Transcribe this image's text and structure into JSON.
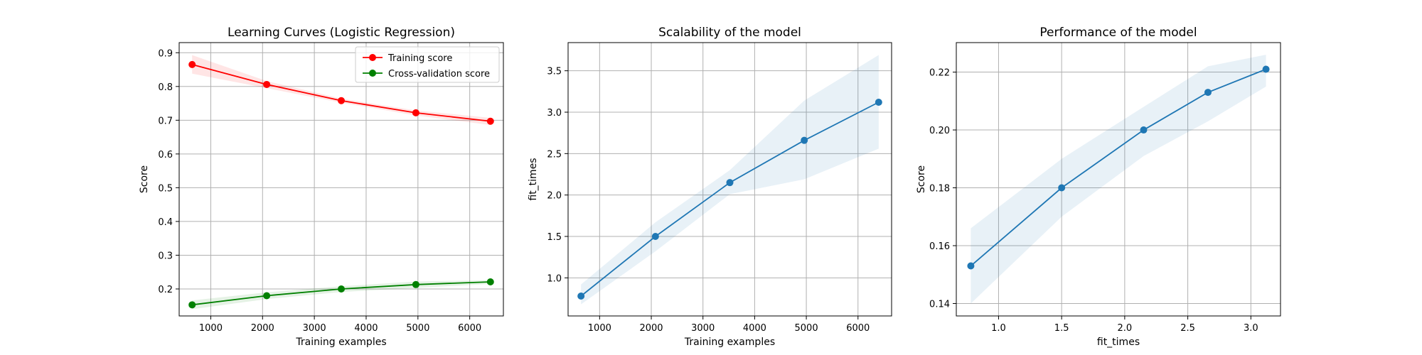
{
  "chart_data": [
    {
      "type": "line",
      "title": "Learning Curves (Logistic Regression)",
      "xlabel": "Training examples",
      "ylabel": "Score",
      "xlim": [
        390,
        6650
      ],
      "ylim": [
        0.12,
        0.93
      ],
      "xticks": [
        1000,
        2000,
        3000,
        4000,
        5000,
        6000
      ],
      "yticks": [
        0.2,
        0.3,
        0.4,
        0.5,
        0.6,
        0.7,
        0.8,
        0.9
      ],
      "grid": true,
      "legend": "top-right",
      "x": [
        640,
        2080,
        3520,
        4960,
        6400
      ],
      "series": [
        {
          "name": "Training score",
          "color": "#ff0000",
          "fill": "rgba(255,0,0,0.1)",
          "values": [
            0.865,
            0.806,
            0.758,
            0.722,
            0.697
          ],
          "band_lower": [
            0.838,
            0.795,
            0.752,
            0.714,
            0.686
          ],
          "band_upper": [
            0.893,
            0.816,
            0.764,
            0.729,
            0.707
          ]
        },
        {
          "name": "Cross-validation score",
          "color": "#008000",
          "fill": "rgba(0,128,0,0.1)",
          "values": [
            0.153,
            0.18,
            0.2,
            0.213,
            0.221
          ],
          "band_lower": [
            0.14,
            0.17,
            0.191,
            0.203,
            0.215
          ],
          "band_upper": [
            0.166,
            0.19,
            0.208,
            0.222,
            0.226
          ]
        }
      ]
    },
    {
      "type": "line",
      "title": "Scalability of the model",
      "xlabel": "Training examples",
      "ylabel": "fit_times",
      "xlim": [
        390,
        6650
      ],
      "ylim": [
        0.54,
        3.84
      ],
      "xticks": [
        1000,
        2000,
        3000,
        4000,
        5000,
        6000
      ],
      "yticks": [
        1.0,
        1.5,
        2.0,
        2.5,
        3.0,
        3.5
      ],
      "ytick_labels": [
        "1.0",
        "1.5",
        "2.0",
        "2.5",
        "3.0",
        "3.5"
      ],
      "grid": true,
      "x": [
        640,
        2080,
        3520,
        4960,
        6400
      ],
      "series": [
        {
          "color": "#1f77b4",
          "fill": "rgba(31,119,180,0.1)",
          "values": [
            0.78,
            1.5,
            2.15,
            2.66,
            3.12
          ],
          "band_lower": [
            0.68,
            1.32,
            2.01,
            2.19,
            2.56
          ],
          "band_upper": [
            0.92,
            1.67,
            2.3,
            3.14,
            3.69
          ]
        }
      ]
    },
    {
      "type": "line",
      "title": "Performance of the model",
      "xlabel": "fit_times",
      "ylabel": "Score",
      "xlim": [
        0.665,
        3.235
      ],
      "ylim": [
        0.1357,
        0.2302
      ],
      "xticks": [
        1.0,
        1.5,
        2.0,
        2.5,
        3.0
      ],
      "xtick_labels": [
        "1.0",
        "1.5",
        "2.0",
        "2.5",
        "3.0"
      ],
      "yticks": [
        0.14,
        0.16,
        0.18,
        0.2,
        0.22
      ],
      "ytick_labels": [
        "0.14",
        "0.16",
        "0.18",
        "0.20",
        "0.22"
      ],
      "grid": true,
      "x": [
        0.78,
        1.5,
        2.15,
        2.66,
        3.12
      ],
      "series": [
        {
          "color": "#1f77b4",
          "fill": "rgba(31,119,180,0.1)",
          "values": [
            0.153,
            0.18,
            0.2,
            0.213,
            0.221
          ],
          "band_lower": [
            0.14,
            0.17,
            0.191,
            0.203,
            0.215
          ],
          "band_upper": [
            0.166,
            0.19,
            0.208,
            0.222,
            0.226
          ]
        }
      ]
    }
  ]
}
